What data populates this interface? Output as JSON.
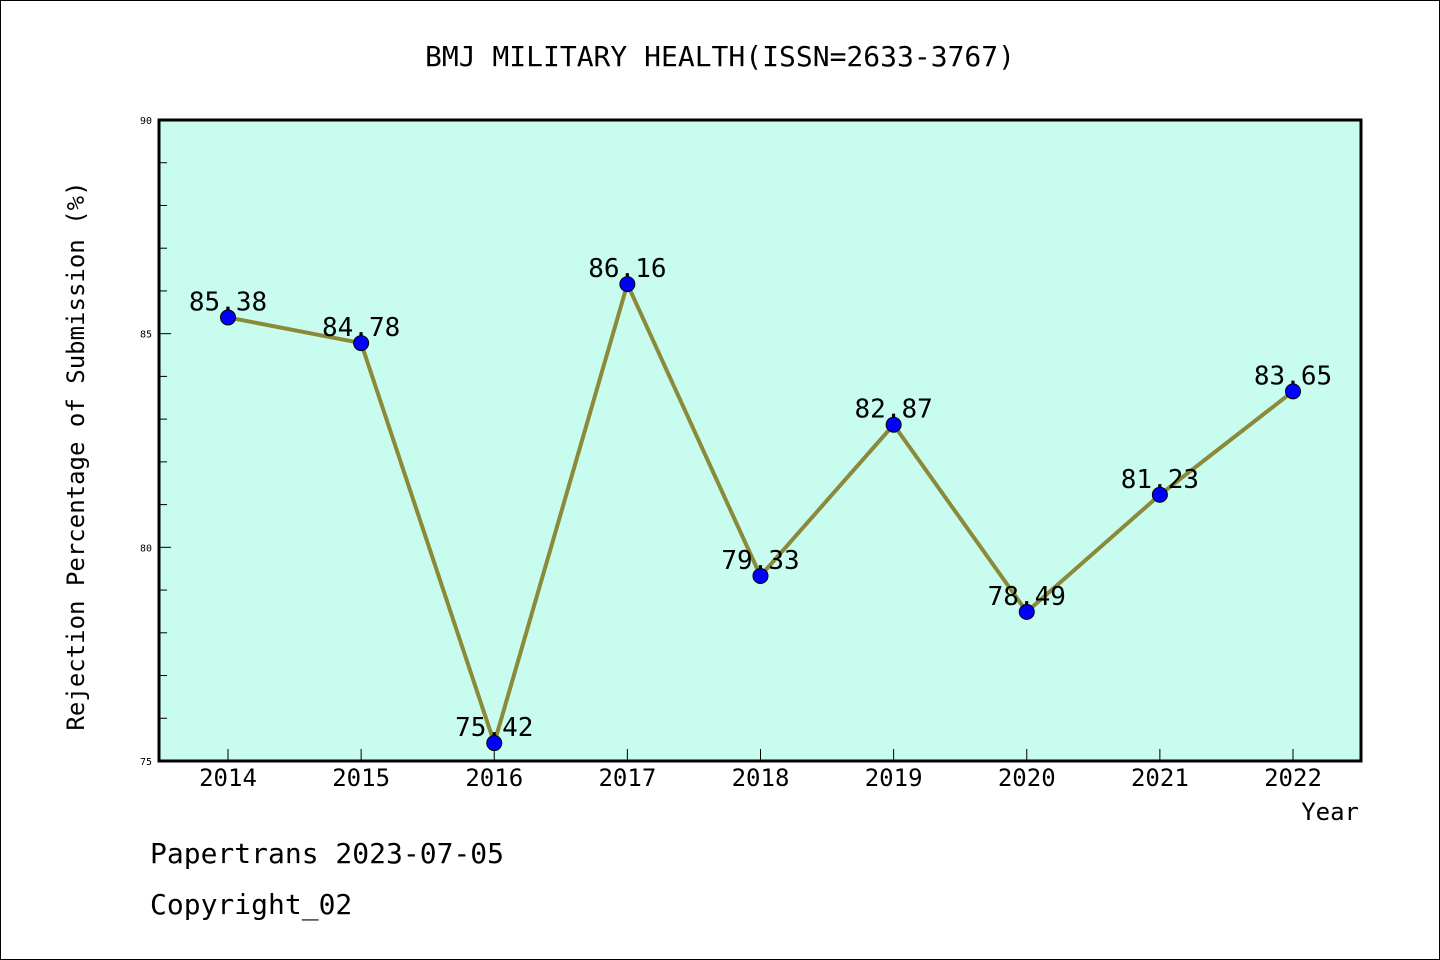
{
  "chart_data": {
    "type": "line",
    "title": "BMJ MILITARY HEALTH(ISSN=2633-3767)",
    "xlabel": "Year",
    "ylabel": "Rejection Percentage of Submission (%)",
    "categories": [
      "2014",
      "2015",
      "2016",
      "2017",
      "2018",
      "2019",
      "2020",
      "2021",
      "2022"
    ],
    "series": [
      {
        "values": [
          85.38,
          84.78,
          75.42,
          86.16,
          79.33,
          82.87,
          78.49,
          81.23,
          83.65
        ],
        "data_labels": [
          "85.38",
          "84.78",
          "75.42",
          "86.16",
          "79.33",
          "82.87",
          "78.49",
          "81.23",
          "83.65"
        ]
      }
    ],
    "ylim": [
      75,
      90
    ],
    "yticks": [
      75,
      80,
      85,
      90
    ],
    "grid": false,
    "colors": {
      "plot_background": "#c8fcee",
      "line": "#8b8a3a",
      "marker": "#0000ff"
    }
  },
  "footer": {
    "line1": "Papertrans 2023-07-05",
    "line2": "Copyright_02"
  }
}
